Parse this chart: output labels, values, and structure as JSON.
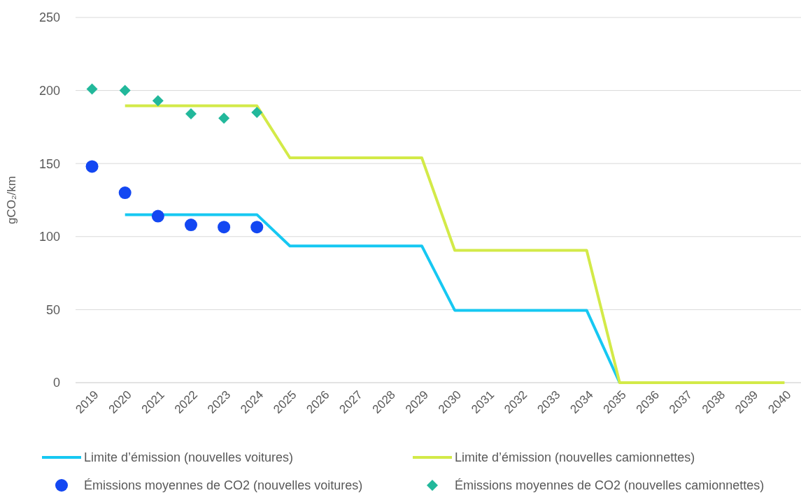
{
  "chart_data": {
    "type": "line",
    "categories": [
      "2019",
      "2020",
      "2021",
      "2022",
      "2023",
      "2024",
      "2025",
      "2026",
      "2027",
      "2028",
      "2029",
      "2030",
      "2031",
      "2032",
      "2033",
      "2034",
      "2035",
      "2036",
      "2037",
      "2038",
      "2039",
      "2040"
    ],
    "ylabel": "gCO₂/km",
    "ylim": [
      0,
      250
    ],
    "yticks": [
      0,
      50,
      100,
      150,
      200,
      250
    ],
    "grid": "y",
    "legend": "bottom",
    "series": [
      {
        "name": "Limite d’émission (nouvelles voitures)",
        "color": "#16c8f2",
        "values": [
          null,
          115,
          115,
          115,
          115,
          115,
          93.6,
          93.6,
          93.6,
          93.6,
          93.6,
          49.5,
          49.5,
          49.5,
          49.5,
          49.5,
          0,
          null,
          null,
          null,
          null,
          null
        ]
      },
      {
        "name": "Limite d’émission (nouvelles camionnettes)",
        "color": "#d3ea48",
        "values": [
          null,
          189.5,
          189.5,
          189.5,
          189.5,
          189.5,
          153.9,
          153.9,
          153.9,
          153.9,
          153.9,
          90.6,
          90.6,
          90.6,
          90.6,
          90.6,
          0,
          0,
          0,
          0,
          0,
          0
        ]
      },
      {
        "name": "Émissions moyennes de CO2 (nouvelles voitures)",
        "type": "scatter",
        "marker": "circle",
        "color": "#1347f2",
        "values": [
          148,
          130,
          114,
          108,
          106.5,
          106.5,
          null,
          null,
          null,
          null,
          null,
          null,
          null,
          null,
          null,
          null,
          null,
          null,
          null,
          null,
          null,
          null
        ]
      },
      {
        "name": "Émissions moyennes de CO2 (nouvelles camionnettes)",
        "type": "scatter",
        "marker": "diamond",
        "color": "#22b89b",
        "values": [
          201,
          200,
          193,
          184,
          181,
          185,
          null,
          null,
          null,
          null,
          null,
          null,
          null,
          null,
          null,
          null,
          null,
          null,
          null,
          null,
          null,
          null
        ]
      }
    ]
  }
}
